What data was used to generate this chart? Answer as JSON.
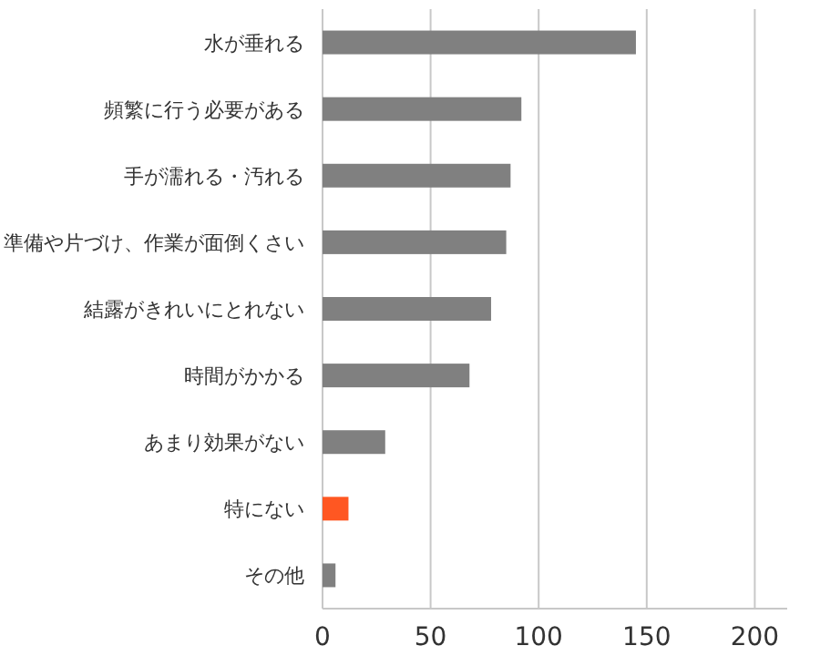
{
  "chart_data": {
    "type": "bar",
    "orientation": "horizontal",
    "categories": [
      "水が垂れる",
      "頻繁に行う必要がある",
      "手が濡れる・汚れる",
      "準備や片づけ、作業が面倒くさい",
      "結露がきれいにとれない",
      "時間がかかる",
      "あまり効果がない",
      "特にない",
      "その他"
    ],
    "values": [
      145,
      92,
      87,
      85,
      78,
      68,
      29,
      12,
      6
    ],
    "colors": [
      "#808080",
      "#808080",
      "#808080",
      "#808080",
      "#808080",
      "#808080",
      "#808080",
      "#ff5722",
      "#808080"
    ],
    "xlim": [
      0,
      215
    ],
    "xticks": [
      0,
      50,
      100,
      150,
      200
    ],
    "grid": "x"
  }
}
